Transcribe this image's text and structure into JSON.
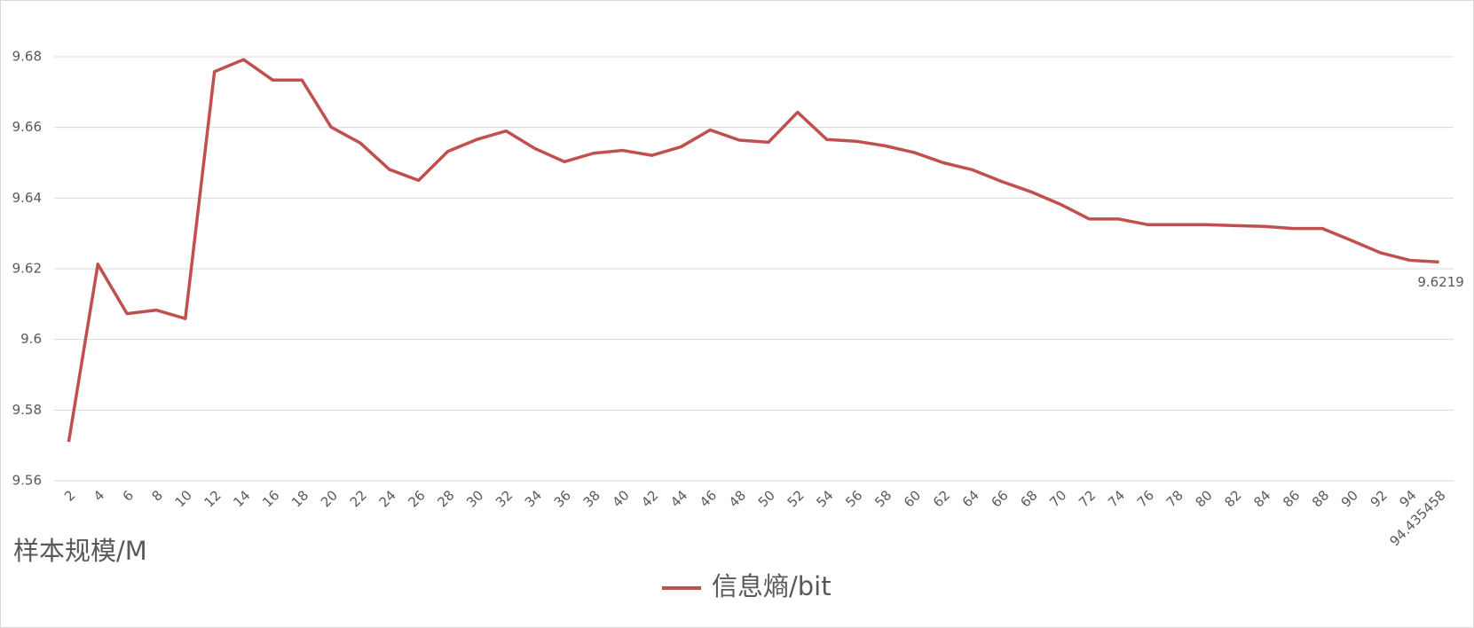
{
  "chart_data": {
    "type": "line",
    "x_label": "样本规模/M",
    "categories": [
      "2",
      "4",
      "6",
      "8",
      "10",
      "12",
      "14",
      "16",
      "18",
      "20",
      "22",
      "24",
      "26",
      "28",
      "30",
      "32",
      "34",
      "36",
      "38",
      "40",
      "42",
      "44",
      "46",
      "48",
      "50",
      "52",
      "54",
      "56",
      "58",
      "60",
      "62",
      "64",
      "66",
      "68",
      "70",
      "72",
      "74",
      "76",
      "78",
      "80",
      "82",
      "84",
      "86",
      "88",
      "90",
      "92",
      "94",
      "94.435458"
    ],
    "series": [
      {
        "name": "信息熵/bit",
        "color": "#c0504d",
        "values": [
          9.571,
          9.6213,
          9.6073,
          9.6083,
          9.6059,
          9.6758,
          9.6792,
          9.6734,
          9.6734,
          9.6601,
          9.6556,
          9.6481,
          9.645,
          9.6532,
          9.6566,
          9.659,
          9.654,
          9.6503,
          9.6527,
          9.6535,
          9.6521,
          9.6545,
          9.6593,
          9.6564,
          9.6558,
          9.6643,
          9.6566,
          9.6561,
          9.6548,
          9.6529,
          9.65,
          9.648,
          9.6447,
          9.6418,
          9.6383,
          9.6341,
          9.6341,
          9.6325,
          9.6325,
          9.6325,
          9.6322,
          9.632,
          9.6314,
          9.6314,
          9.628,
          9.6245,
          9.6224,
          9.6219
        ]
      }
    ],
    "data_label_index": 47,
    "ylim": [
      9.56,
      9.68
    ],
    "yticks": [
      9.56,
      9.58,
      9.6,
      9.62,
      9.64,
      9.66,
      9.68
    ],
    "grid": true,
    "legend": "bottom"
  }
}
